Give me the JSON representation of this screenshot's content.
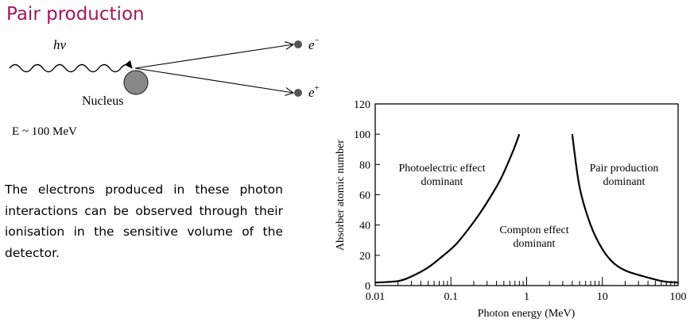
{
  "title": "Pair production",
  "diagram": {
    "photon_label": "hν",
    "nucleus_label": "Nucleus",
    "electron_label": "e",
    "electron_sign": "−",
    "positron_label": "e",
    "positron_sign": "+",
    "energy_label": "E ~ 100 MeV"
  },
  "paragraph": "The electrons produced in these photon interactions can be observed through their ionisation in the sensitive volume of the detector.",
  "colors": {
    "title": "#a3175f",
    "nucleus": "#888888",
    "particle": "#555555"
  },
  "chart_data": {
    "type": "line",
    "xlabel": "Photon energy (MeV)",
    "ylabel": "Absorber atomic number",
    "xscale": "log",
    "xlim": [
      0.01,
      100
    ],
    "ylim": [
      0,
      120
    ],
    "x_ticks": [
      "0.01",
      "0.1",
      "1",
      "10",
      "100"
    ],
    "y_ticks": [
      "0",
      "20",
      "40",
      "60",
      "80",
      "100",
      "120"
    ],
    "series": [
      {
        "name": "photoelectric-compton boundary",
        "x": [
          0.01,
          0.02,
          0.03,
          0.05,
          0.08,
          0.12,
          0.2,
          0.3,
          0.45,
          0.65,
          0.8
        ],
        "y": [
          2,
          3,
          6,
          12,
          20,
          28,
          42,
          55,
          70,
          88,
          100
        ]
      },
      {
        "name": "compton-pair boundary",
        "x": [
          4,
          5,
          7,
          10,
          14,
          20,
          30,
          50,
          70,
          100
        ],
        "y": [
          100,
          65,
          40,
          24,
          15,
          10,
          7,
          4,
          2.5,
          2
        ]
      }
    ],
    "annotations": [
      {
        "line1": "Photoelectric effect",
        "line2": "dominant"
      },
      {
        "line1": "Compton effect",
        "line2": "dominant"
      },
      {
        "line1": "Pair production",
        "line2": "dominant"
      }
    ]
  }
}
